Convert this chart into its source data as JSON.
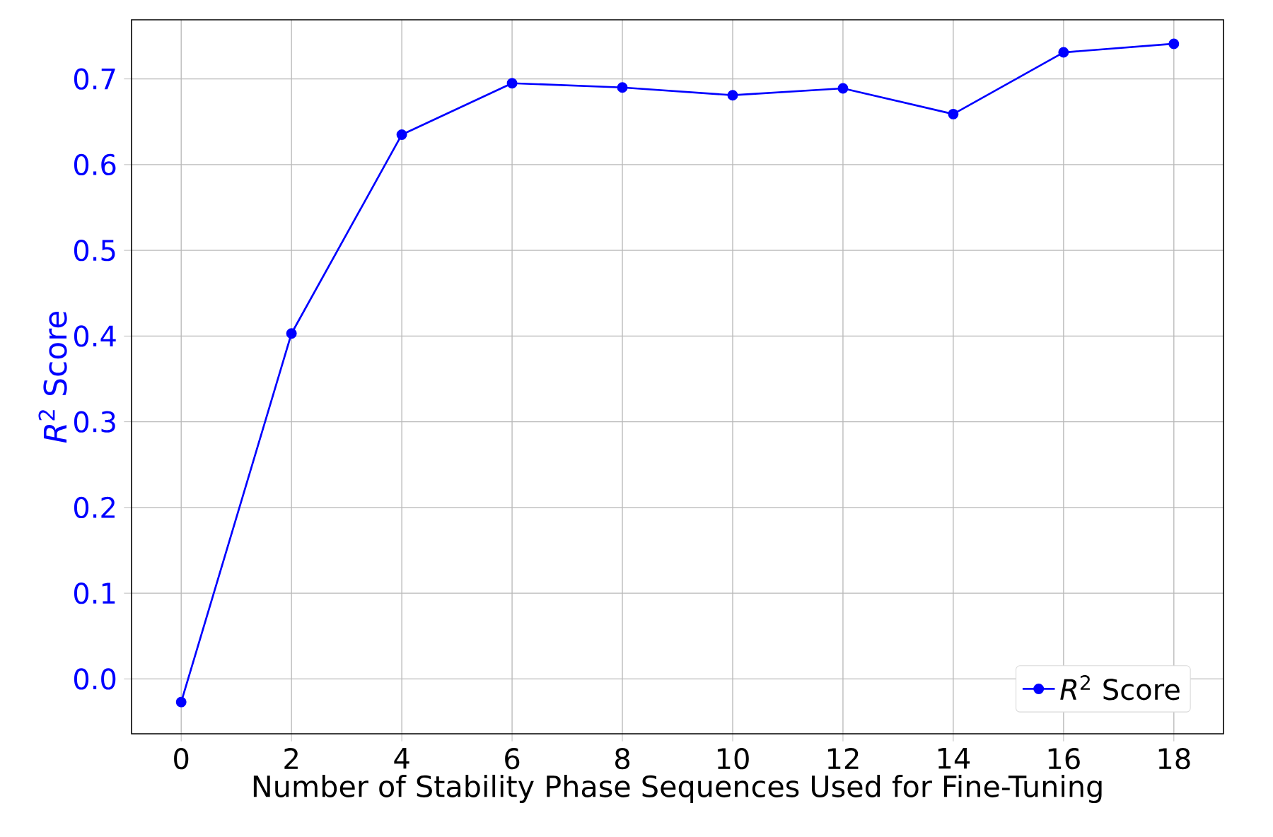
{
  "chart_data": {
    "type": "line",
    "xlabel": "Number of Stability Phase Sequences Used for Fine-Tuning",
    "ylabel": "*R*$^{2}$ Score",
    "x": [
      0,
      2,
      4,
      6,
      8,
      10,
      12,
      14,
      16,
      18
    ],
    "series": [
      {
        "name": "*R*$^{2}$ Score",
        "color": "#0000ff",
        "values": [
          -0.027,
          0.403,
          0.635,
          0.695,
          0.69,
          0.681,
          0.689,
          0.659,
          0.731,
          0.741
        ]
      }
    ],
    "xlim": [
      -0.9,
      18.9
    ],
    "ylim": [
      -0.064,
      0.769
    ],
    "xticks": [
      0,
      2,
      4,
      6,
      8,
      10,
      12,
      14,
      16,
      18
    ],
    "yticks": [
      {
        "value": 0,
        "label": "0.0"
      },
      0.1,
      0.2,
      0.3,
      0.4,
      0.5,
      0.6,
      0.7
    ],
    "grid": true,
    "legend": "bottom right",
    "marker": "circle",
    "line_style": "solid"
  }
}
